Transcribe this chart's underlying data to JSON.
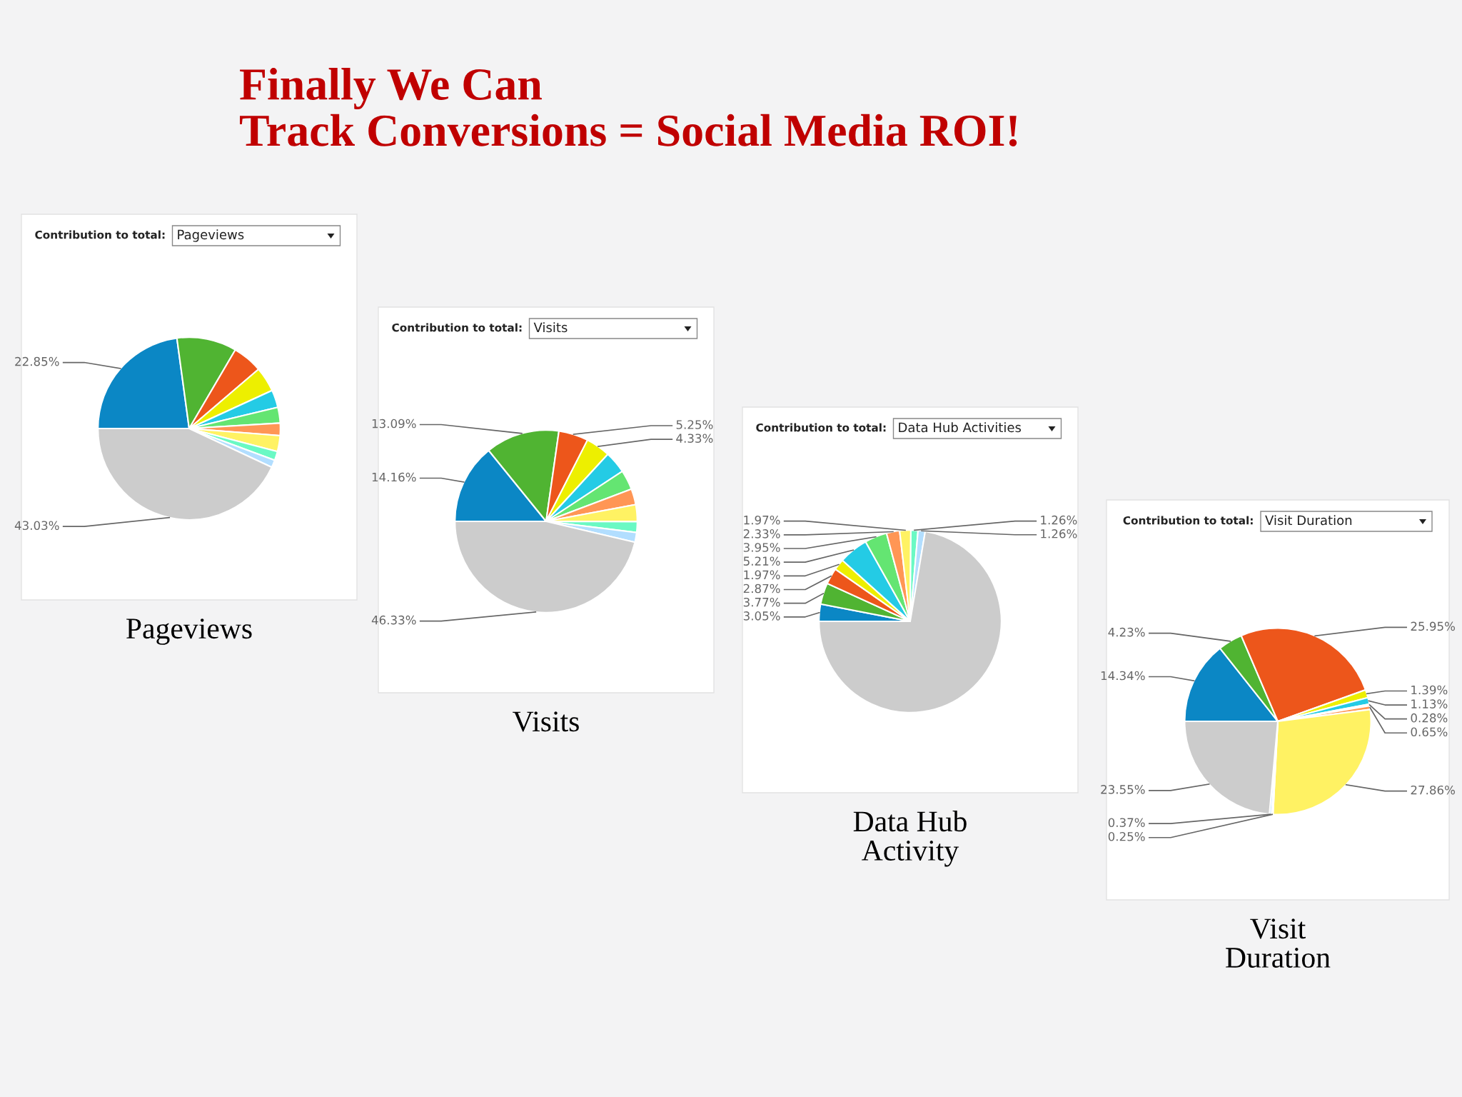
{
  "chart_data": [
    {
      "type": "pie",
      "title": "Contribution to total:",
      "subtitle": "Pageviews",
      "categories": [
        null,
        null,
        null,
        null,
        null,
        null,
        null,
        null,
        null,
        null,
        null
      ],
      "values": [
        22.85,
        10.6,
        5.3,
        4.4,
        3.1,
        2.8,
        2.2,
        2.8,
        1.6,
        1.32,
        43.03
      ],
      "colors": [
        "#0b87c5",
        "#50b432",
        "#ed561b",
        "#edef00",
        "#24cbe5",
        "#64e572",
        "#ff9655",
        "#fff263",
        "#6af9c4",
        "#b2deff",
        "#cccccc"
      ],
      "value_labels": [
        "22.85%",
        null,
        null,
        null,
        null,
        null,
        null,
        null,
        null,
        null,
        "43.03%"
      ],
      "annotations": [
        "Pageviews",
        "Finally We Can\nTrack Conversions = Social Media ROI!"
      ]
    },
    {
      "type": "pie",
      "title": "Contribution to total:",
      "subtitle": "Visits",
      "categories": [
        null,
        null,
        null,
        null,
        null,
        null,
        null,
        null,
        null,
        null,
        null
      ],
      "values": [
        14.16,
        13.09,
        5.25,
        4.33,
        3.92,
        3.5,
        2.8,
        3.0,
        1.9,
        1.72,
        46.33
      ],
      "colors": [
        "#0b87c5",
        "#50b432",
        "#ed561b",
        "#edef00",
        "#24cbe5",
        "#64e572",
        "#ff9655",
        "#fff263",
        "#6af9c4",
        "#b2deff",
        "#cccccc"
      ],
      "value_labels": [
        "14.16%",
        "13.09%",
        "5.25%",
        "4.33%",
        null,
        null,
        null,
        null,
        null,
        null,
        "46.33%"
      ],
      "annotations": [
        "Visits"
      ]
    },
    {
      "type": "pie",
      "title": "Contribution to total:",
      "subtitle": "Data Hub Activities",
      "categories": [
        null,
        null,
        null,
        null,
        null,
        null,
        null,
        null,
        null,
        null,
        null
      ],
      "values": [
        3.05,
        3.77,
        2.87,
        1.97,
        5.21,
        3.95,
        2.33,
        1.97,
        1.26,
        1.26,
        72.36
      ],
      "colors": [
        "#0b87c5",
        "#50b432",
        "#ed561b",
        "#edef00",
        "#24cbe5",
        "#64e572",
        "#ff9655",
        "#fff263",
        "#6af9c4",
        "#b2deff",
        "#cccccc"
      ],
      "value_labels": [
        "3.05%",
        "3.77%",
        "2.87%",
        "1.97%",
        "5.21%",
        "3.95%",
        "2.33%",
        "1.97%",
        "1.26%",
        "1.26%",
        null
      ],
      "annotations": [
        "Data Hub\nActivity"
      ]
    },
    {
      "type": "pie",
      "title": "Contribution to total:",
      "subtitle": "Visit Duration",
      "categories": [
        null,
        null,
        null,
        null,
        null,
        null,
        null,
        null,
        null,
        null,
        null
      ],
      "values": [
        14.34,
        4.23,
        25.95,
        1.39,
        1.13,
        0.28,
        0.65,
        27.86,
        0.25,
        0.37,
        23.55
      ],
      "colors": [
        "#0b87c5",
        "#50b432",
        "#ed561b",
        "#edef00",
        "#24cbe5",
        "#64e572",
        "#ff9655",
        "#fff263",
        "#6af9c4",
        "#b2deff",
        "#cccccc"
      ],
      "value_labels": [
        "14.34%",
        "4.23%",
        "25.95%",
        "1.39%",
        "1.13%",
        "0.28%",
        "0.65%",
        "27.86%",
        "0.25%",
        "0.37%",
        "23.55%"
      ],
      "annotations": [
        "Visit\nDuration"
      ]
    }
  ]
}
